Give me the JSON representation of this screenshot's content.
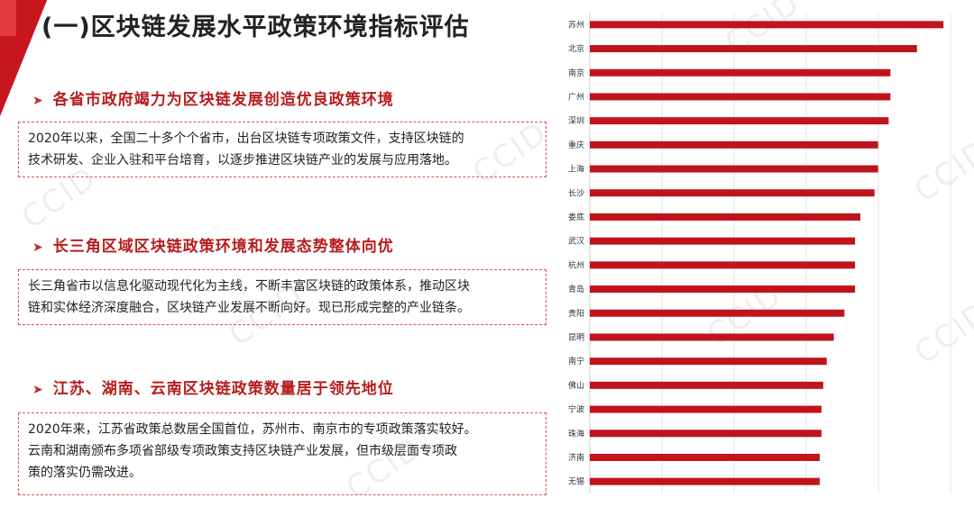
{
  "page": {
    "title": "(一)区块链发展水平政策环境指标评估",
    "sections": [
      {
        "heading": "各省市政府竭力为区块链发展创造优良政策环境",
        "lines": [
          "2020年以来，全国二十多个个省市，出台区块链专项政策文件，支持区块链的",
          "技术研发、企业入驻和平台培育，以逐步推进区块链产业的发展与应用落地。"
        ]
      },
      {
        "heading": "长三角区域区块链政策环境和发展态势整体向优",
        "lines": [
          "长三角省市以信息化驱动现代化为主线，不断丰富区块链的政策体系，推动区块",
          "链和实体经济深度融合，区块链产业发展不断向好。现已形成完整的产业链条。"
        ]
      },
      {
        "heading": "江苏、湖南、云南区块链政策数量居于领先地位",
        "lines": [
          "2020年来，江苏省政策总数居全国首位，苏州市、南京市的专项政策落实较好。",
          "云南和湖南颁布多项省部级专项政策支持区块链产业发展，但市级层面专项政",
          "策的落实仍需改进。"
        ]
      }
    ],
    "watermark": "CCID",
    "colors": {
      "bar": "#c0141b",
      "accent": "#c8161d",
      "heading": "#b71c1c"
    }
  },
  "chart_data": {
    "type": "bar",
    "orientation": "horizontal",
    "categories": [
      "苏州",
      "北京",
      "南京",
      "广州",
      "深圳",
      "重庆",
      "上海",
      "长沙",
      "娄底",
      "武汉",
      "杭州",
      "青岛",
      "贵阳",
      "昆明",
      "南宁",
      "佛山",
      "宁波",
      "珠海",
      "济南",
      "无锡"
    ],
    "values": [
      100,
      92.5,
      85,
      85,
      84.5,
      81.5,
      81.5,
      80.5,
      76.5,
      75,
      75,
      75,
      72,
      69,
      67,
      66,
      65.5,
      65.5,
      65,
      65
    ],
    "xlim": [
      0,
      102
    ],
    "grid": true,
    "title": "",
    "xlabel": "",
    "ylabel": ""
  }
}
